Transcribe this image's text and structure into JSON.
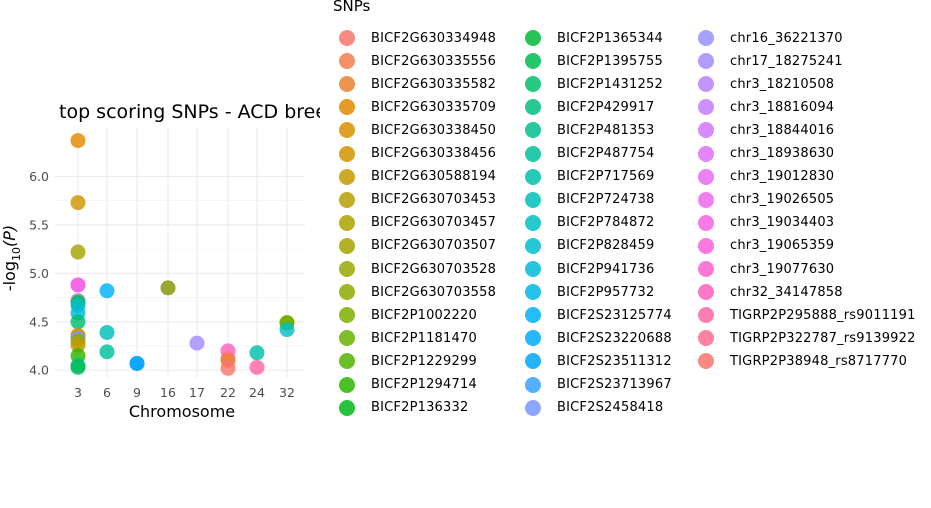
{
  "chart_data": {
    "type": "scatter",
    "title": "top scoring SNPs - ACD breed filtered",
    "xlabel": "Chromosome",
    "ylabel": {
      "base": "-log",
      "sub": "10",
      "arg": "(P)"
    },
    "x_ticks": [
      "3",
      "6",
      "9",
      "16",
      "17",
      "22",
      "24",
      "32"
    ],
    "y_ticks": [
      4.0,
      4.5,
      5.0,
      5.5,
      6.0
    ],
    "ylim": [
      3.92,
      6.5
    ],
    "grid": true,
    "legend_title": "SNPs",
    "legend_position": "right",
    "legend": [
      {
        "name": "BICF2G630334948",
        "color": "#F8766D"
      },
      {
        "name": "BICF2G630335556",
        "color": "#F07F4D"
      },
      {
        "name": "BICF2G630335582",
        "color": "#EA8331"
      },
      {
        "name": "BICF2G630335709",
        "color": "#E28A00"
      },
      {
        "name": "BICF2G630338450",
        "color": "#D89000"
      },
      {
        "name": "BICF2G630338456",
        "color": "#D09400"
      },
      {
        "name": "BICF2G630588194",
        "color": "#C49A00"
      },
      {
        "name": "BICF2G630703453",
        "color": "#B99E00"
      },
      {
        "name": "BICF2G630703457",
        "color": "#ADA200"
      },
      {
        "name": "BICF2G630703507",
        "color": "#A3A500"
      },
      {
        "name": "BICF2G630703528",
        "color": "#98A800"
      },
      {
        "name": "BICF2G630703558",
        "color": "#8BAB00"
      },
      {
        "name": "BICF2P1002220",
        "color": "#7CAE00"
      },
      {
        "name": "BICF2P1181470",
        "color": "#6BB100"
      },
      {
        "name": "BICF2P1229299",
        "color": "#53B400"
      },
      {
        "name": "BICF2P1294714",
        "color": "#2DB600"
      },
      {
        "name": "BICF2P136332",
        "color": "#00B81F"
      },
      {
        "name": "BICF2P1365344",
        "color": "#00BA38"
      },
      {
        "name": "BICF2P1395755",
        "color": "#00BC54"
      },
      {
        "name": "BICF2P1431252",
        "color": "#00BE6C"
      },
      {
        "name": "BICF2P429917",
        "color": "#00BF7D"
      },
      {
        "name": "BICF2P481353",
        "color": "#00C08E"
      },
      {
        "name": "BICF2P487754",
        "color": "#00C19C"
      },
      {
        "name": "BICF2P717569",
        "color": "#00C1AA"
      },
      {
        "name": "BICF2P724738",
        "color": "#00C0B8"
      },
      {
        "name": "BICF2P784872",
        "color": "#00BFC4"
      },
      {
        "name": "BICF2P828459",
        "color": "#00BDD0"
      },
      {
        "name": "BICF2P941736",
        "color": "#00BBDB"
      },
      {
        "name": "BICF2P957732",
        "color": "#00B7E5"
      },
      {
        "name": "BICF2S23125774",
        "color": "#00B0F6"
      },
      {
        "name": "BICF2S23220688",
        "color": "#00ABFD"
      },
      {
        "name": "BICF2S23511312",
        "color": "#00A5FF"
      },
      {
        "name": "BICF2S23713967",
        "color": "#35A2FF"
      },
      {
        "name": "BICF2S2458418",
        "color": "#7997FF"
      },
      {
        "name": "chr16_36221370",
        "color": "#9590FF"
      },
      {
        "name": "chr17_18275241",
        "color": "#A58AFF"
      },
      {
        "name": "chr3_18210508",
        "color": "#B983FF"
      },
      {
        "name": "chr3_18816094",
        "color": "#C77CFF"
      },
      {
        "name": "chr3_18844016",
        "color": "#D376FF"
      },
      {
        "name": "chr3_18938630",
        "color": "#DF70F8"
      },
      {
        "name": "chr3_19012830",
        "color": "#E76BF3"
      },
      {
        "name": "chr3_19026505",
        "color": "#EF67EB"
      },
      {
        "name": "chr3_19034403",
        "color": "#F564E3"
      },
      {
        "name": "chr3_19065359",
        "color": "#FA62DB"
      },
      {
        "name": "chr3_19077630",
        "color": "#FD61D1"
      },
      {
        "name": "chr32_34147858",
        "color": "#FF62BC"
      },
      {
        "name": "TIGRP2P295888_rs9011191",
        "color": "#FF67A4"
      },
      {
        "name": "TIGRP2P322787_rs9139922",
        "color": "#FF6C91"
      },
      {
        "name": "TIGRP2P38948_rs8717770",
        "color": "#F8766D"
      }
    ],
    "points": [
      {
        "x": "3",
        "y": 6.37,
        "color": "#E28A00"
      },
      {
        "x": "3",
        "y": 5.73,
        "color": "#D09400"
      },
      {
        "x": "3",
        "y": 5.22,
        "color": "#A3A500"
      },
      {
        "x": "3",
        "y": 4.88,
        "color": "#E76BF3"
      },
      {
        "x": "3",
        "y": 4.88,
        "color": "#F564E3"
      },
      {
        "x": "3",
        "y": 4.72,
        "color": "#B983FF"
      },
      {
        "x": "3",
        "y": 4.7,
        "color": "#00BA38"
      },
      {
        "x": "3",
        "y": 4.67,
        "color": "#00BFC4"
      },
      {
        "x": "3",
        "y": 4.59,
        "color": "#00BBDB"
      },
      {
        "x": "3",
        "y": 4.5,
        "color": "#00BE6C"
      },
      {
        "x": "3",
        "y": 4.36,
        "color": "#B99E00"
      },
      {
        "x": "3",
        "y": 4.35,
        "color": "#E28A00"
      },
      {
        "x": "3",
        "y": 4.33,
        "color": "#7997FF"
      },
      {
        "x": "3",
        "y": 4.3,
        "color": "#8BAB00"
      },
      {
        "x": "3",
        "y": 4.26,
        "color": "#C49A00"
      },
      {
        "x": "3",
        "y": 4.15,
        "color": "#2DB600"
      },
      {
        "x": "3",
        "y": 4.05,
        "color": "#00C08E"
      },
      {
        "x": "3",
        "y": 4.03,
        "color": "#00BC54"
      },
      {
        "x": "6",
        "y": 4.82,
        "color": "#00B0F6"
      },
      {
        "x": "6",
        "y": 4.39,
        "color": "#00C0B8"
      },
      {
        "x": "6",
        "y": 4.19,
        "color": "#00C19C"
      },
      {
        "x": "9",
        "y": 4.07,
        "color": "#35A2FF"
      },
      {
        "x": "9",
        "y": 4.07,
        "color": "#00A5FF"
      },
      {
        "x": "16",
        "y": 4.85,
        "color": "#9590FF"
      },
      {
        "x": "16",
        "y": 4.85,
        "color": "#98A800"
      },
      {
        "x": "17",
        "y": 4.28,
        "color": "#A58AFF"
      },
      {
        "x": "22",
        "y": 4.2,
        "color": "#FF62BC"
      },
      {
        "x": "22",
        "y": 4.12,
        "color": "#FF6C91"
      },
      {
        "x": "22",
        "y": 4.1,
        "color": "#EA8331"
      },
      {
        "x": "22",
        "y": 4.02,
        "color": "#F8766D"
      },
      {
        "x": "24",
        "y": 4.18,
        "color": "#00C1AA"
      },
      {
        "x": "24",
        "y": 4.03,
        "color": "#FF67A4"
      },
      {
        "x": "32",
        "y": 4.49,
        "color": "#D89000"
      },
      {
        "x": "32",
        "y": 4.49,
        "color": "#53B400"
      },
      {
        "x": "32",
        "y": 4.49,
        "color": "#7CAE00"
      },
      {
        "x": "32",
        "y": 4.42,
        "color": "#00BFC4"
      }
    ]
  }
}
